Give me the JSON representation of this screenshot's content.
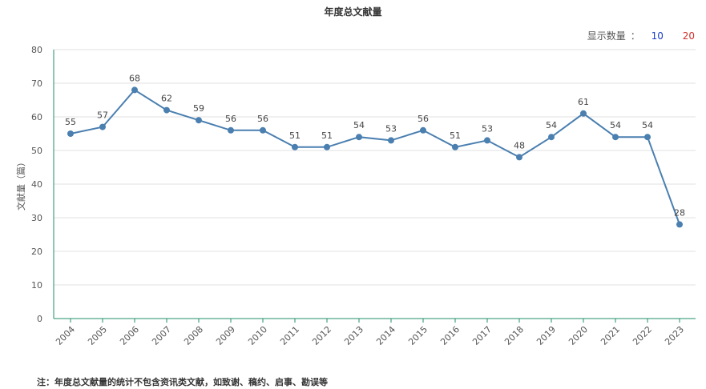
{
  "title": "年度总文献量",
  "controls": {
    "label": "显示数量",
    "colon": "：",
    "option_10": "10",
    "option_20": "20"
  },
  "footnote": "注：年度总文献量的统计不包含资讯类文献，如致谢、稿约、启事、勘误等",
  "chart_data": {
    "type": "line",
    "title": "年度总文献量",
    "xlabel": "",
    "ylabel": "文献量（篇）",
    "ylim": [
      0,
      80
    ],
    "yticks": [
      0,
      10,
      20,
      30,
      40,
      50,
      60,
      70,
      80
    ],
    "grid": true,
    "color": "#4a7fb0",
    "categories": [
      "2004",
      "2005",
      "2006",
      "2007",
      "2008",
      "2009",
      "2010",
      "2011",
      "2012",
      "2013",
      "2014",
      "2015",
      "2016",
      "2017",
      "2018",
      "2019",
      "2020",
      "2021",
      "2022",
      "2023"
    ],
    "values": [
      55,
      57,
      68,
      62,
      59,
      56,
      56,
      51,
      51,
      54,
      53,
      56,
      51,
      53,
      48,
      54,
      61,
      54,
      54,
      28
    ]
  }
}
